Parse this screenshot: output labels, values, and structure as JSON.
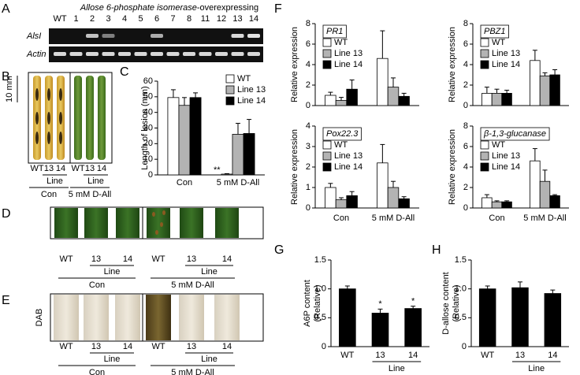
{
  "panel_labels": [
    "A",
    "B",
    "C",
    "D",
    "E",
    "F",
    "G",
    "H"
  ],
  "panel_a": {
    "title": [
      "Allose 6-phosphate isomerase",
      "-overexpressing"
    ],
    "lanes": [
      "WT",
      "1",
      "2",
      "3",
      "4",
      "5",
      "6",
      "7",
      "8",
      "11",
      "12",
      "13",
      "14"
    ],
    "rows": [
      "AlsI",
      "Actin"
    ]
  },
  "panel_b": {
    "scale": "10 mm",
    "lanes": [
      "WT",
      "13",
      "14",
      "WT",
      "13",
      "14"
    ],
    "line": "Line",
    "groups": [
      "Con",
      "5 mM D-All"
    ]
  },
  "panel_d": {
    "lanes": [
      "WT",
      "13",
      "14",
      "WT",
      "13",
      "14"
    ],
    "line": "Line",
    "groups": [
      "Con",
      "5 mM D-All"
    ]
  },
  "panel_e": {
    "side_label": "DAB",
    "lanes": [
      "WT",
      "13",
      "14",
      "WT",
      "13",
      "14"
    ],
    "line": "Line",
    "groups": [
      "Con",
      "5 mM D-All"
    ]
  },
  "chart_data": [
    {
      "type": "bar",
      "ylabel": "Length of lesion (mm)",
      "categories": [
        "Con",
        "5 mM D-All"
      ],
      "ylim": [
        0,
        60
      ],
      "yticks": [
        0,
        10,
        20,
        30,
        40,
        50,
        60
      ],
      "legend": "upper right",
      "series": [
        {
          "name": "WT",
          "color": "#ffffff",
          "values": [
            49.5,
            0.5
          ],
          "errors": [
            5,
            0.3
          ],
          "significance": [
            null,
            "**"
          ]
        },
        {
          "name": "Line 13",
          "color": "#b3b3b3",
          "values": [
            44.5,
            26
          ],
          "errors": [
            5,
            7
          ]
        },
        {
          "name": "Line 14",
          "color": "#000000",
          "values": [
            49.5,
            26.5
          ],
          "errors": [
            3,
            9
          ]
        }
      ]
    },
    {
      "type": "bar",
      "title": "PR1",
      "ylabel": "Relative expression",
      "ylim": [
        0,
        8
      ],
      "yticks": [
        0,
        2,
        4,
        6,
        8
      ],
      "legend": "upper left",
      "series": [
        {
          "name": "WT",
          "color": "#ffffff",
          "values": [
            1.0,
            4.6
          ],
          "errors": [
            0.3,
            2.7
          ]
        },
        {
          "name": "Line 13",
          "color": "#b3b3b3",
          "values": [
            0.5,
            1.8
          ],
          "errors": [
            0.3,
            0.9
          ]
        },
        {
          "name": "Line 14",
          "color": "#000000",
          "values": [
            1.6,
            0.9
          ],
          "errors": [
            0.9,
            0.3
          ]
        }
      ]
    },
    {
      "type": "bar",
      "title": "PBZ1",
      "ylabel": "Relative expression",
      "ylim": [
        0,
        8
      ],
      "yticks": [
        0,
        2,
        4,
        6,
        8
      ],
      "legend": "upper left",
      "series": [
        {
          "name": "WT",
          "color": "#ffffff",
          "values": [
            1.2,
            4.4
          ],
          "errors": [
            0.6,
            1.0
          ]
        },
        {
          "name": "Line 13",
          "color": "#b3b3b3",
          "values": [
            1.2,
            2.9
          ],
          "errors": [
            0.4,
            0.3
          ]
        },
        {
          "name": "Line 14",
          "color": "#000000",
          "values": [
            1.2,
            3.0
          ],
          "errors": [
            0.3,
            0.5
          ]
        }
      ]
    },
    {
      "type": "bar",
      "title": "Pox22.3",
      "ylabel": "Relative expression",
      "categories": [
        "Con",
        "5 mM D-All"
      ],
      "ylim": [
        0,
        4
      ],
      "yticks": [
        0,
        1,
        2,
        3,
        4
      ],
      "legend": "upper left",
      "series": [
        {
          "name": "WT",
          "color": "#ffffff",
          "values": [
            1.0,
            2.2
          ],
          "errors": [
            0.2,
            0.9
          ]
        },
        {
          "name": "Line 13",
          "color": "#b3b3b3",
          "values": [
            0.4,
            1.0
          ],
          "errors": [
            0.1,
            0.3
          ]
        },
        {
          "name": "Line 14",
          "color": "#000000",
          "values": [
            0.6,
            0.45
          ],
          "errors": [
            0.2,
            0.1
          ]
        }
      ]
    },
    {
      "type": "bar",
      "title": "β-1,3-glucanase",
      "ylabel": "Relative expression",
      "categories": [
        "Con",
        "5 mM D-All"
      ],
      "ylim": [
        0,
        8
      ],
      "yticks": [
        0,
        2,
        4,
        6,
        8
      ],
      "legend": "upper left",
      "series": [
        {
          "name": "WT",
          "color": "#ffffff",
          "values": [
            1.0,
            4.6
          ],
          "errors": [
            0.3,
            1.2
          ]
        },
        {
          "name": "Line 13",
          "color": "#b3b3b3",
          "values": [
            0.6,
            2.6
          ],
          "errors": [
            0.1,
            1.1
          ]
        },
        {
          "name": "Line 14",
          "color": "#000000",
          "values": [
            0.6,
            1.2
          ],
          "errors": [
            0.1,
            0.1
          ]
        }
      ]
    },
    {
      "type": "bar",
      "ylabel": [
        "A6P content",
        "(Relative)"
      ],
      "categories": [
        "WT",
        "13",
        "14"
      ],
      "group_label": "Line",
      "color": "#000000",
      "values": [
        1.0,
        0.58,
        0.66
      ],
      "errors": [
        0.05,
        0.07,
        0.04
      ],
      "significance": [
        null,
        "*",
        "*"
      ],
      "ylim": [
        0,
        1.5
      ],
      "yticks": [
        0,
        0.5,
        {
          "value": 1,
          "label": "1.0"
        },
        1.5
      ]
    },
    {
      "type": "bar",
      "ylabel": [
        "D-allose content",
        "(Relative)"
      ],
      "categories": [
        "WT",
        "13",
        "14"
      ],
      "group_label": "Line",
      "color": "#000000",
      "values": [
        1.0,
        1.02,
        0.92
      ],
      "errors": [
        0.05,
        0.1,
        0.06
      ],
      "ylim": [
        0,
        1.5
      ],
      "yticks": [
        0,
        0.5,
        {
          "value": 1,
          "label": "1.0"
        },
        1.5
      ]
    }
  ]
}
